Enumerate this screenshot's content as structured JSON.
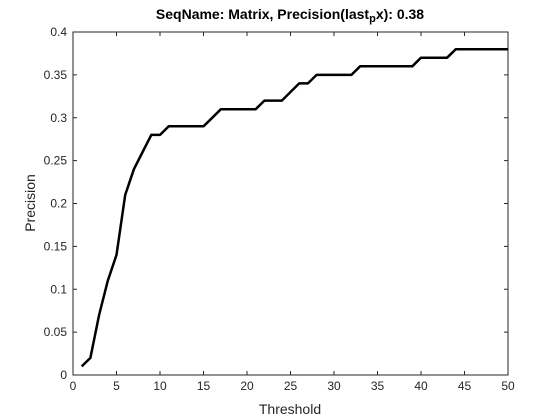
{
  "chart_data": {
    "type": "line",
    "title": {
      "prefix": "SeqName: Matrix, Precision(last",
      "subscript": "p",
      "suffix": "x): 0.38"
    },
    "xlabel": "Threshold",
    "ylabel": "Precision",
    "xlim": [
      0,
      50
    ],
    "ylim": [
      0,
      0.4
    ],
    "xticks": [
      0,
      5,
      10,
      15,
      20,
      25,
      30,
      35,
      40,
      45,
      50
    ],
    "yticks": [
      0,
      0.05,
      0.1,
      0.15,
      0.2,
      0.25,
      0.3,
      0.35,
      0.4
    ],
    "xtick_labels": [
      "0",
      "5",
      "10",
      "15",
      "20",
      "25",
      "30",
      "35",
      "40",
      "45",
      "50"
    ],
    "ytick_labels": [
      "0",
      "0.05",
      "0.1",
      "0.15",
      "0.2",
      "0.25",
      "0.3",
      "0.35",
      "0.4"
    ],
    "grid": false,
    "series": [
      {
        "name": "Precision",
        "color": "#000000",
        "x": [
          1,
          2,
          3,
          4,
          5,
          6,
          7,
          8,
          9,
          10,
          11,
          12,
          13,
          14,
          15,
          16,
          17,
          18,
          19,
          20,
          21,
          22,
          23,
          24,
          25,
          26,
          27,
          28,
          29,
          30,
          31,
          32,
          33,
          34,
          35,
          36,
          37,
          38,
          39,
          40,
          41,
          42,
          43,
          44,
          45,
          46,
          47,
          48,
          49,
          50
        ],
        "values": [
          0.01,
          0.02,
          0.07,
          0.11,
          0.14,
          0.21,
          0.24,
          0.26,
          0.28,
          0.28,
          0.29,
          0.29,
          0.29,
          0.29,
          0.29,
          0.3,
          0.31,
          0.31,
          0.31,
          0.31,
          0.31,
          0.32,
          0.32,
          0.32,
          0.33,
          0.34,
          0.34,
          0.35,
          0.35,
          0.35,
          0.35,
          0.35,
          0.36,
          0.36,
          0.36,
          0.36,
          0.36,
          0.36,
          0.36,
          0.37,
          0.37,
          0.37,
          0.37,
          0.38,
          0.38,
          0.38,
          0.38,
          0.38,
          0.38,
          0.38
        ]
      }
    ]
  }
}
